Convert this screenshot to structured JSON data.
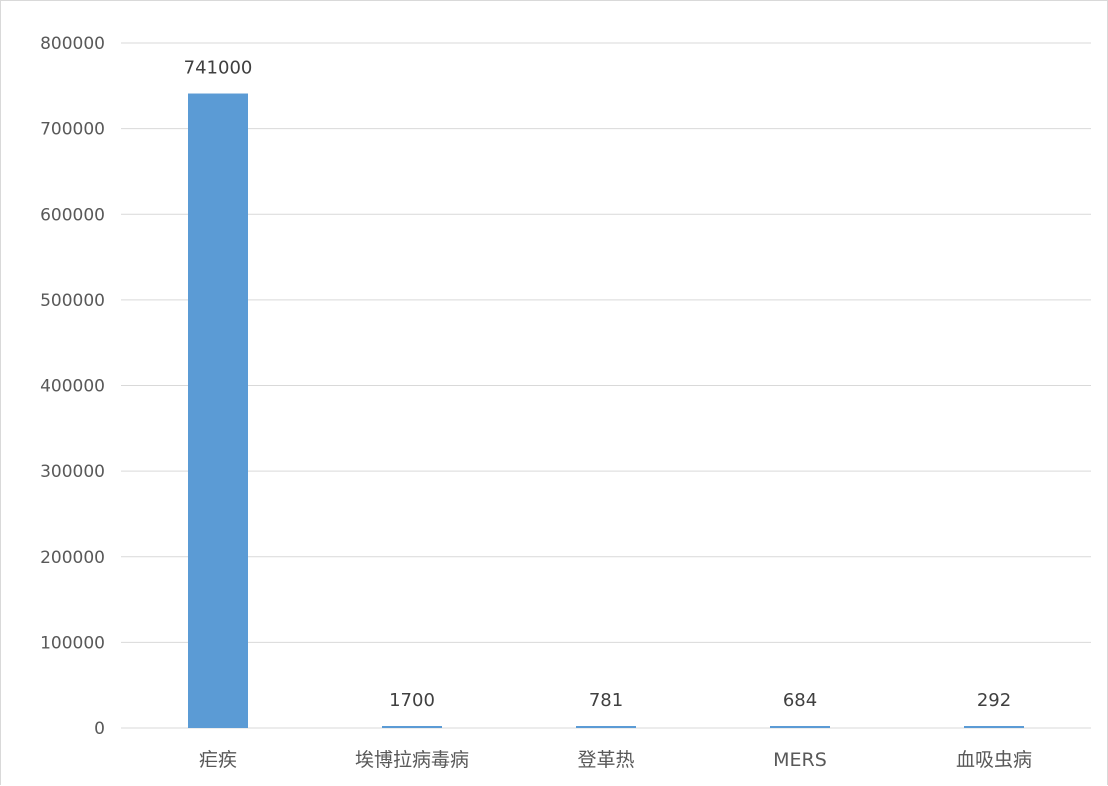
{
  "chart_data": {
    "type": "bar",
    "categories": [
      "疟疾",
      "埃博拉病毒病",
      "登革热",
      "MERS",
      "血吸虫病"
    ],
    "values": [
      741000,
      1700,
      781,
      684,
      292
    ],
    "data_labels": [
      "741000",
      "1700",
      "781",
      "684",
      "292"
    ],
    "y_ticks": [
      "0",
      "100000",
      "200000",
      "300000",
      "400000",
      "500000",
      "600000",
      "700000",
      "800000"
    ],
    "ylim": [
      0,
      800000
    ],
    "grid": true,
    "legend": "none",
    "colors": {
      "bar": "#5b9bd5",
      "grid": "#d9d9d9",
      "text": "#595959"
    }
  }
}
